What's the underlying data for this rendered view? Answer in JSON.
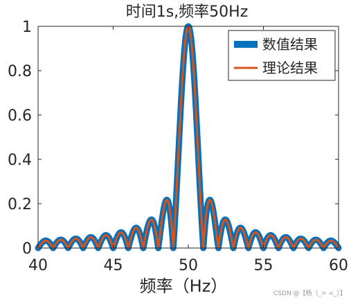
{
  "chart_data": {
    "type": "line",
    "title": "时间1s,频率50Hz",
    "xlabel": "频率（Hz）",
    "ylabel": "",
    "xlim": [
      40,
      60
    ],
    "ylim": [
      0,
      1
    ],
    "x_ticks": [
      "40",
      "45",
      "50",
      "55",
      "60"
    ],
    "y_ticks": [
      "0",
      "0.2",
      "0.4",
      "0.6",
      "0.8",
      "1"
    ],
    "grid": false,
    "legend_position": "top-right",
    "function": "|sinc(f - 50)|",
    "x": [
      40,
      40.5,
      41,
      41.5,
      42,
      42.5,
      43,
      43.5,
      44,
      44.5,
      45,
      45.5,
      46,
      46.5,
      47,
      47.5,
      48,
      48.5,
      49,
      49.5,
      50,
      50.5,
      51,
      51.5,
      52,
      52.5,
      53,
      53.5,
      54,
      54.5,
      55,
      55.5,
      56,
      56.5,
      57,
      57.5,
      58,
      58.5,
      59,
      59.5,
      60
    ],
    "series": [
      {
        "name": "数值结果",
        "color": "#0072BD",
        "values": [
          0,
          0.034,
          0,
          0.037,
          0,
          0.042,
          0,
          0.049,
          0,
          0.058,
          0,
          0.071,
          0,
          0.091,
          0,
          0.127,
          0,
          0.212,
          0,
          0.637,
          1,
          0.637,
          0,
          0.212,
          0,
          0.127,
          0,
          0.091,
          0,
          0.071,
          0,
          0.058,
          0,
          0.049,
          0,
          0.042,
          0,
          0.037,
          0,
          0.034,
          0
        ]
      },
      {
        "name": "理论结果",
        "color": "#D95319",
        "values": [
          0,
          0.034,
          0,
          0.037,
          0,
          0.042,
          0,
          0.049,
          0,
          0.058,
          0,
          0.071,
          0,
          0.091,
          0,
          0.127,
          0,
          0.212,
          0,
          0.637,
          1,
          0.637,
          0,
          0.212,
          0,
          0.127,
          0,
          0.091,
          0,
          0.071,
          0,
          0.058,
          0,
          0.049,
          0,
          0.042,
          0,
          0.037,
          0,
          0.034,
          0
        ]
      }
    ]
  },
  "watermark": "CSDN @【杨（_> <_）】"
}
